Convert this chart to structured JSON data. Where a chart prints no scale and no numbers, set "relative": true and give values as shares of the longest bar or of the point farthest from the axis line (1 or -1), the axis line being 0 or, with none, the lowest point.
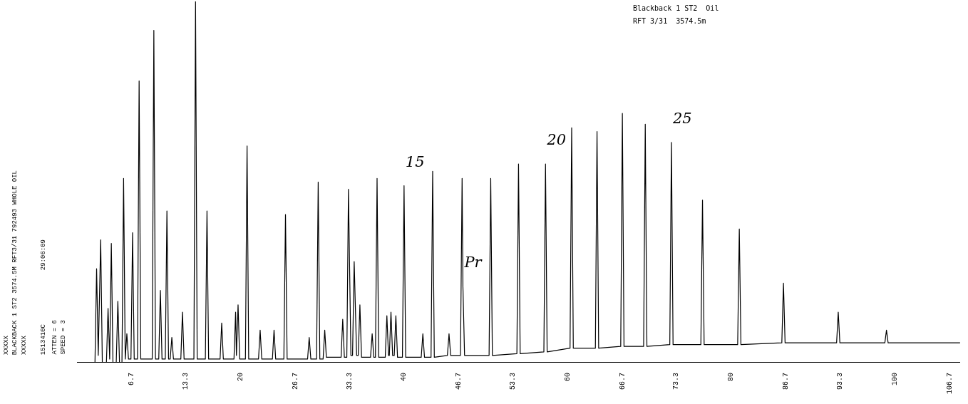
{
  "chart_data": {
    "type": "line",
    "title": "Blackback 1 ST2  Oil",
    "subtitle": "RFT 3/31  3574.5m",
    "relative": true,
    "grid": false,
    "legend": false,
    "tick_labels": "x",
    "marker": "none",
    "line_style": "solid",
    "annotations": [
      "XXXXX",
      "BLACKBACK 1 ST2 3574.5M RFT3/31 792493 WHOLE OIL",
      "XXXXX",
      "1513410C",
      "29:06:09",
      "ATTEN = 6",
      "SPEED = 3",
      {
        "text": "15",
        "x": 40.0,
        "y": 0.49
      },
      {
        "text": "Pr",
        "x": 47.2,
        "y": 0.21
      },
      {
        "text": "20",
        "x": 57.3,
        "y": 0.55
      },
      {
        "text": "25",
        "x": 72.7,
        "y": 0.61
      }
    ],
    "xlim": [
      0,
      108
    ],
    "xticks": [
      6.7,
      13.3,
      20,
      26.7,
      33.3,
      40,
      46.7,
      53.3,
      60,
      66.7,
      73.3,
      80,
      86.7,
      93.3,
      100,
      106.7
    ],
    "series": [
      {
        "color": "#000000",
        "x": [
          0.4,
          2.2,
          2.4,
          2.6,
          2.9,
          3.1,
          3.6,
          3.8,
          4.0,
          4.2,
          4.4,
          4.8,
          5.0,
          5.2,
          5.5,
          5.7,
          5.9,
          6.1,
          6.3,
          6.6,
          6.8,
          7.0,
          7.4,
          7.6,
          7.8,
          9.2,
          9.4,
          9.6,
          10.0,
          10.2,
          10.4,
          10.8,
          11.0,
          11.2,
          11.4,
          11.6,
          11.8,
          12.7,
          12.9,
          13.1,
          14.3,
          14.5,
          14.7,
          15.7,
          15.9,
          16.1,
          17.5,
          17.7,
          17.9,
          19.2,
          19.4,
          19.5,
          19.7,
          19.9,
          20.6,
          20.8,
          21.0,
          22.2,
          22.4,
          22.6,
          23.9,
          24.1,
          24.3,
          25.3,
          25.5,
          25.7,
          28.2,
          28.4,
          28.6,
          29.3,
          29.5,
          29.7,
          30.1,
          30.3,
          30.5,
          32.3,
          32.5,
          32.7,
          33.0,
          33.2,
          33.5,
          33.7,
          33.9,
          34.2,
          34.4,
          34.6,
          34.8,
          35.9,
          36.1,
          36.3,
          36.5,
          36.7,
          36.9,
          37.7,
          37.9,
          38.1,
          38.2,
          38.4,
          38.6,
          38.8,
          39.0,
          39.2,
          39.8,
          40.0,
          40.2,
          42.1,
          42.3,
          42.5,
          43.3,
          43.5,
          43.7,
          45.3,
          45.5,
          45.7,
          46.9,
          47.1,
          47.2,
          47.4,
          50.4,
          50.6,
          50.8,
          53.8,
          54.0,
          54.2,
          57.1,
          57.3,
          57.5,
          60.3,
          60.5,
          60.7,
          63.4,
          63.6,
          63.8,
          66.5,
          66.7,
          66.9,
          69.3,
          69.5,
          69.7,
          72.5,
          72.7,
          72.9,
          76.3,
          76.5,
          76.7,
          80.8,
          81.0,
          81.2,
          86.2,
          86.4,
          86.6,
          92.9,
          93.1,
          93.3,
          98.8,
          99.0,
          99.2,
          108
        ],
        "values": [
          0,
          0,
          0.26,
          0.02,
          0.34,
          0,
          0,
          0.15,
          0.01,
          0.33,
          0,
          0,
          0.17,
          0,
          0,
          0.51,
          0.01,
          0.08,
          0.01,
          0.01,
          0.36,
          0.01,
          0.01,
          0.78,
          0.01,
          0.01,
          0.92,
          0.01,
          0.01,
          0.2,
          0.01,
          0.01,
          0.42,
          0.01,
          0.01,
          0.07,
          0.01,
          0.01,
          0.14,
          0.01,
          0.01,
          1,
          0.01,
          0.01,
          0.42,
          0.01,
          0.01,
          0.11,
          0.01,
          0.01,
          0.14,
          0.02,
          0.16,
          0.01,
          0.01,
          0.6,
          0.01,
          0.01,
          0.09,
          0.01,
          0.01,
          0.09,
          0.01,
          0.01,
          0.41,
          0.01,
          0.01,
          0.07,
          0.01,
          0.01,
          0.5,
          0.01,
          0.01,
          0.09,
          0.015,
          0.015,
          0.12,
          0.015,
          0.015,
          0.48,
          0.02,
          0.02,
          0.28,
          0.02,
          0.02,
          0.16,
          0.015,
          0.015,
          0.08,
          0.015,
          0.015,
          0.51,
          0.015,
          0.015,
          0.13,
          0.02,
          0.02,
          0.14,
          0.02,
          0.02,
          0.13,
          0.015,
          0.015,
          0.49,
          0.015,
          0.015,
          0.08,
          0.015,
          0.015,
          0.53,
          0.015,
          0.02,
          0.08,
          0.02,
          0.02,
          0.51,
          0.21,
          0.02,
          0.02,
          0.51,
          0.02,
          0.025,
          0.55,
          0.025,
          0.03,
          0.55,
          0.03,
          0.04,
          0.65,
          0.04,
          0.04,
          0.64,
          0.04,
          0.045,
          0.69,
          0.045,
          0.045,
          0.66,
          0.045,
          0.05,
          0.61,
          0.05,
          0.05,
          0.45,
          0.05,
          0.05,
          0.37,
          0.05,
          0.055,
          0.22,
          0.055,
          0.055,
          0.14,
          0.055,
          0.055,
          0.09,
          0.055,
          0.055
        ]
      }
    ]
  }
}
